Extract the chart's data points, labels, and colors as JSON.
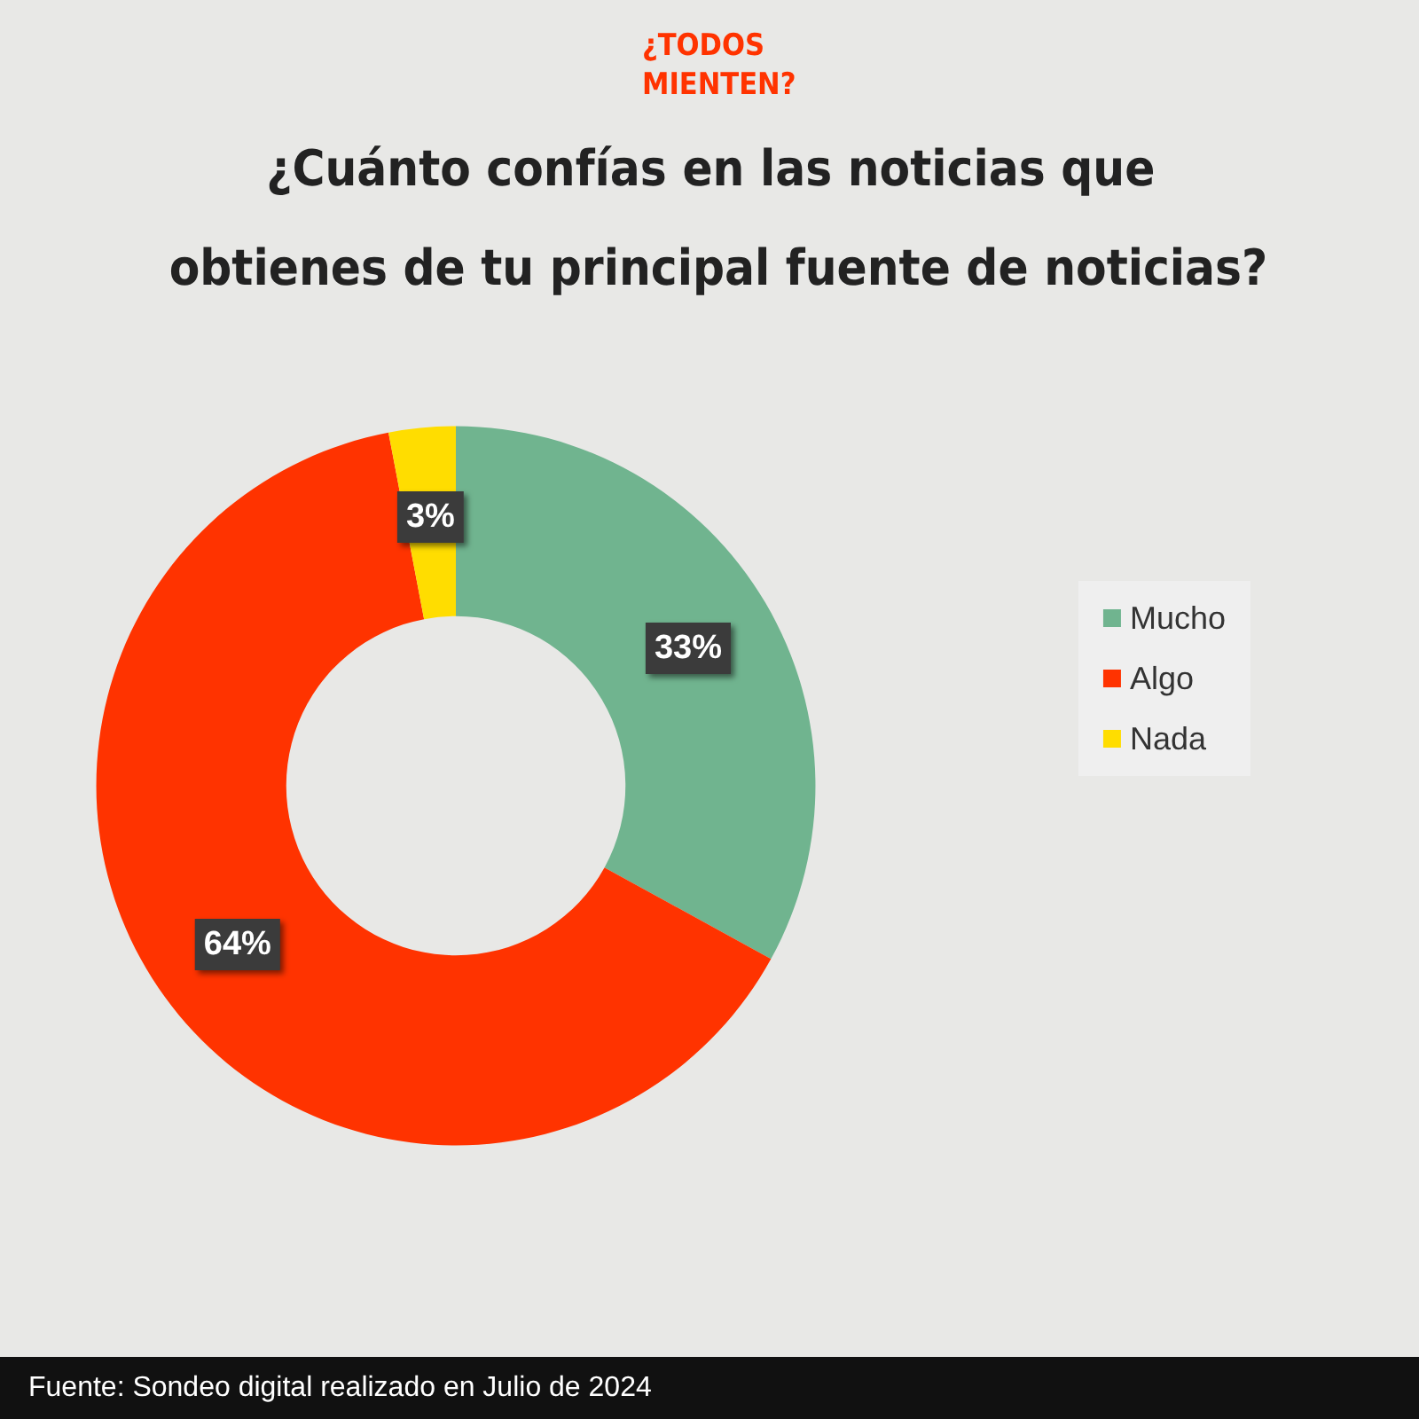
{
  "chart_data": {
    "type": "donut",
    "subtitle": "¿TODOS MIENTEN?",
    "title": "¿Cuánto confías en las noticias que obtienes de tu principal fuente de noticias?",
    "categories": [
      "Mucho",
      "Algo",
      "Nada"
    ],
    "values": [
      33,
      64,
      3
    ],
    "colors": [
      "#70b48f",
      "#ff3300",
      "#ffdd00"
    ],
    "value_labels": [
      "33%",
      "64%",
      "3%"
    ],
    "legend": "right",
    "annotations": [
      "Fuente: Sondeo digital realizado en Julio de 2024"
    ]
  }
}
